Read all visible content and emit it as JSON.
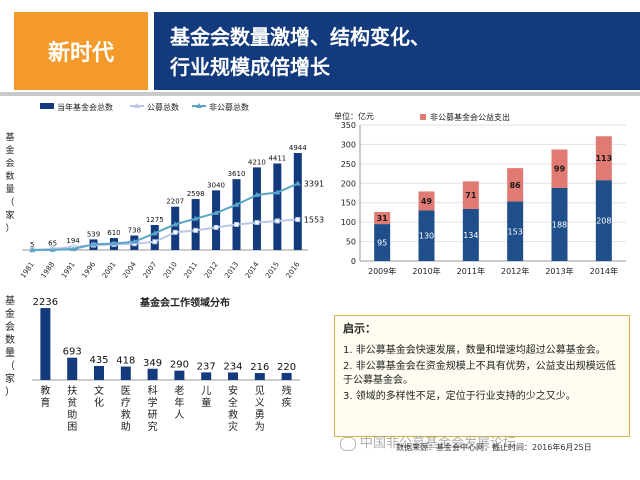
{
  "header": {
    "tag": "新时代",
    "title_line1": "基金会数量激增、结构变化、",
    "title_line2": "行业规模成倍增长"
  },
  "chart_data": [
    {
      "type": "bar",
      "ylabel": "基金会数量（家）",
      "categories": [
        "1981",
        "1988",
        "1991",
        "1996",
        "2001",
        "2004",
        "2007",
        "2010",
        "2011",
        "2012",
        "2013",
        "2014",
        "2015",
        "2016"
      ],
      "series": [
        {
          "name": "当年基金会总数",
          "values": [
            5,
            65,
            194,
            539,
            610,
            738,
            1275,
            2207,
            2598,
            3040,
            3610,
            4210,
            4411,
            4944
          ],
          "labels": [
            "5",
            "65",
            "194",
            "539",
            "610",
            "738",
            "1275",
            "2207",
            "2598",
            "3040",
            "3610",
            "4210",
            "4411",
            "4944"
          ],
          "color": "#123a7c"
        },
        {
          "name": "公募总数",
          "line": true,
          "values": [
            5,
            60,
            150,
            250,
            280,
            320,
            420,
            900,
            1000,
            1150,
            1300,
            1400,
            1480,
            1553
          ],
          "end_label": "1553",
          "color": "#b9c8e6"
        },
        {
          "name": "非公募总数",
          "line": true,
          "values": [
            0,
            5,
            44,
            289,
            330,
            418,
            855,
            1307,
            1598,
            1890,
            2310,
            2810,
            2931,
            3391
          ],
          "end_label": "3391",
          "color": "#5aa5c8"
        }
      ],
      "ylim": [
        0,
        5200
      ]
    },
    {
      "type": "bar",
      "stacked": true,
      "unit_label": "单位：亿元",
      "categories": [
        "2009年",
        "2010年",
        "2011年",
        "2012年",
        "2013年",
        "2014年"
      ],
      "yticks": [
        "0",
        "50",
        "100",
        "150",
        "200",
        "250",
        "300",
        "350"
      ],
      "ylim": [
        0,
        350
      ],
      "series": [
        {
          "name": "",
          "values": [
            95,
            130,
            134,
            153,
            188,
            208
          ],
          "labels": [
            "95",
            "130",
            "134",
            "153",
            "188",
            "208"
          ],
          "color": "#1f4f8a"
        },
        {
          "name": "非公募基金会公益支出",
          "values": [
            31,
            49,
            71,
            86,
            99,
            113
          ],
          "labels": [
            "31",
            "49",
            "71",
            "86",
            "99",
            "113"
          ],
          "color": "#e27a74"
        }
      ],
      "legend": "top"
    },
    {
      "type": "bar",
      "title": "基金会工作领域分布",
      "ylabel": "基金会数量（家）",
      "categories": [
        "教育",
        "扶贫助困",
        "文化",
        "医疗救助",
        "科学研究",
        "老年人",
        "儿童",
        "安全救灾",
        "见义勇为",
        "残疾"
      ],
      "values": [
        2236,
        693,
        435,
        418,
        349,
        290,
        237,
        234,
        216,
        220
      ],
      "labels": [
        "2236",
        "693",
        "435",
        "418",
        "349",
        "290",
        "237",
        "234",
        "216",
        "220"
      ],
      "ylim": [
        0,
        2300
      ],
      "color": "#123a7c"
    }
  ],
  "note": {
    "title": "启示：",
    "items": [
      "1. 非公募基金会快速发展，数量和增速均超过公募基金会。",
      "2. 非公募基金会在资金规模上不具有优势，公益支出规模远低于公募基金会。",
      "3. 领域的多样性不足，定位于行业支持的少之又少。"
    ]
  },
  "source": "数据来源：基金会中心网，截止时间：2016年6月25日",
  "watermark": "中国非公募基金会发展论坛"
}
